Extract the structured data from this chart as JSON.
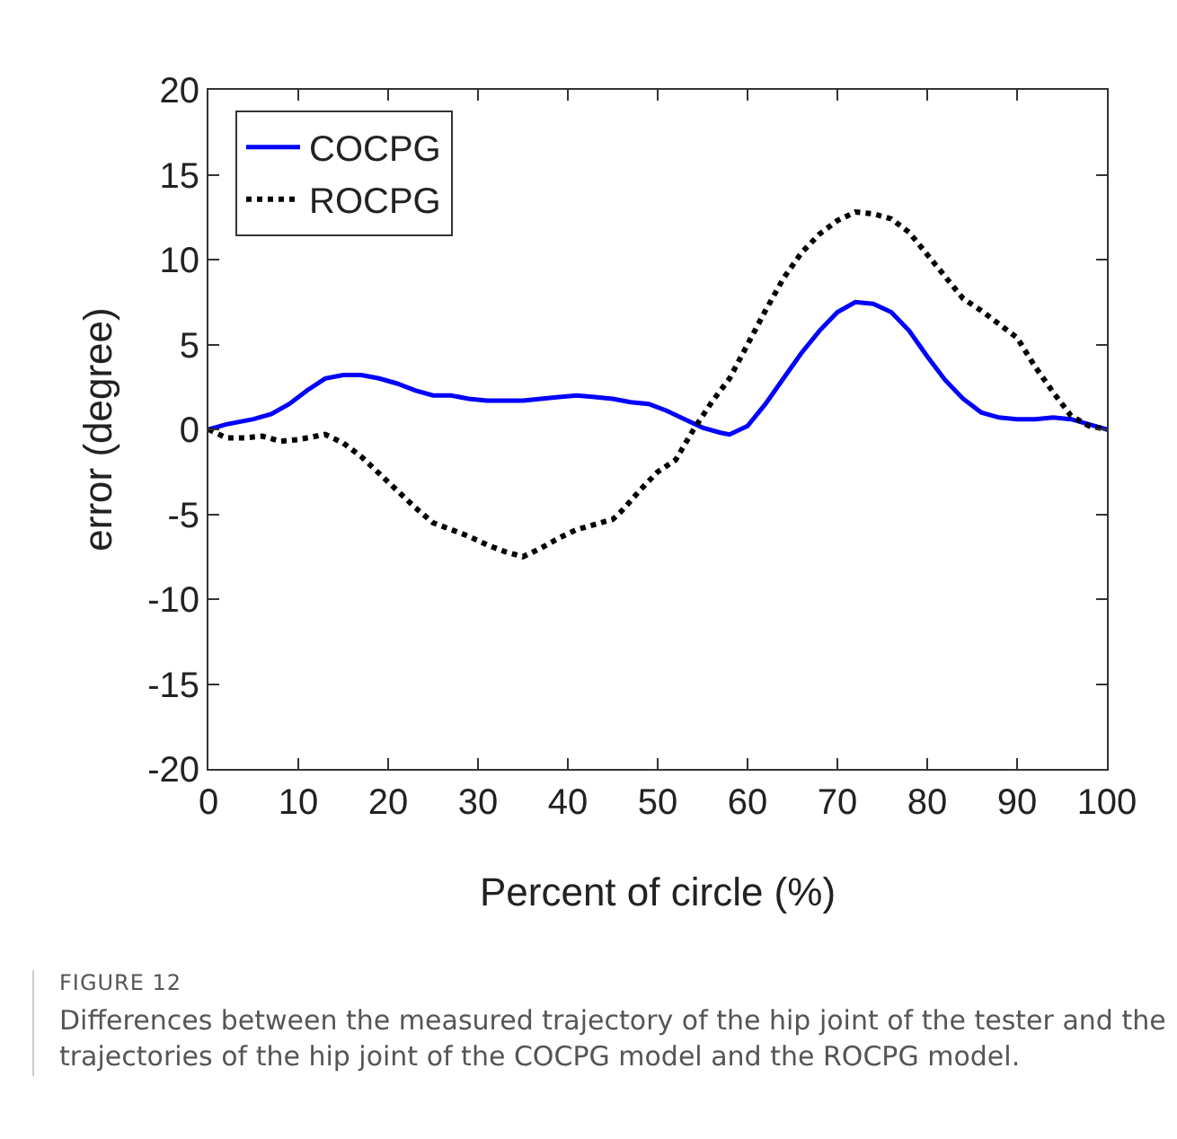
{
  "chart_data": {
    "type": "line",
    "xlabel": "Percent of circle (%)",
    "ylabel": "error (degree)",
    "xlim": [
      0,
      100
    ],
    "xticks": [
      0,
      10,
      20,
      30,
      40,
      50,
      60,
      70,
      80,
      90,
      100
    ],
    "ylim": [
      -20,
      20
    ],
    "yticks": [
      -20,
      -15,
      -10,
      -5,
      0,
      5,
      10,
      15,
      20
    ],
    "grid": false,
    "legend": "top left",
    "marker": "none",
    "series": [
      {
        "name": "COCPG",
        "color": "#0000ff",
        "line_style": "solid",
        "x": [
          0,
          2,
          5,
          7,
          9,
          11,
          13,
          15,
          17,
          19,
          21,
          23,
          25,
          27,
          29,
          31,
          33,
          35,
          37,
          39,
          41,
          43,
          45,
          47,
          49,
          51,
          53,
          55,
          57,
          58,
          60,
          62,
          64,
          66,
          68,
          70,
          72,
          74,
          76,
          78,
          80,
          82,
          84,
          86,
          88,
          90,
          92,
          94,
          96,
          98,
          100
        ],
        "values": [
          0,
          0.3,
          0.6,
          0.9,
          1.5,
          2.3,
          3.0,
          3.2,
          3.2,
          3.0,
          2.7,
          2.3,
          2.0,
          2.0,
          1.8,
          1.7,
          1.7,
          1.7,
          1.8,
          1.9,
          2.0,
          1.9,
          1.8,
          1.6,
          1.5,
          1.1,
          0.6,
          0.1,
          -0.2,
          -0.3,
          0.2,
          1.5,
          3.0,
          4.5,
          5.8,
          6.9,
          7.5,
          7.4,
          6.9,
          5.8,
          4.3,
          2.9,
          1.8,
          1.0,
          0.7,
          0.6,
          0.6,
          0.7,
          0.6,
          0.3,
          0
        ]
      },
      {
        "name": "ROCPG",
        "color": "#000000",
        "line_style": "dotted",
        "x": [
          0,
          2,
          4,
          6,
          8,
          10,
          12,
          13,
          15,
          17,
          19,
          21,
          23,
          25,
          27,
          29,
          31,
          33,
          35,
          37,
          39,
          41,
          43,
          45,
          46,
          48,
          50,
          52,
          54,
          56,
          58,
          60,
          62,
          64,
          66,
          68,
          70,
          72,
          74,
          76,
          78,
          80,
          82,
          84,
          86,
          88,
          90,
          92,
          94,
          96,
          98,
          100
        ],
        "values": [
          0,
          -0.5,
          -0.5,
          -0.4,
          -0.7,
          -0.6,
          -0.4,
          -0.3,
          -0.8,
          -1.6,
          -2.6,
          -3.6,
          -4.6,
          -5.5,
          -5.9,
          -6.3,
          -6.8,
          -7.2,
          -7.5,
          -7.0,
          -6.4,
          -5.9,
          -5.6,
          -5.3,
          -4.8,
          -3.6,
          -2.5,
          -1.8,
          0,
          1.6,
          3.0,
          5.0,
          7.0,
          8.9,
          10.4,
          11.5,
          12.3,
          12.8,
          12.7,
          12.4,
          11.6,
          10.3,
          9.0,
          7.7,
          7.0,
          6.2,
          5.4,
          3.7,
          2.2,
          0.8,
          0.2,
          0
        ]
      }
    ],
    "annotations": [
      "FIGURE 12",
      "Differences between the measured trajectory of the hip joint of the tester and the trajectories of the hip joint of the COCPG model and the ROCPG model."
    ]
  }
}
